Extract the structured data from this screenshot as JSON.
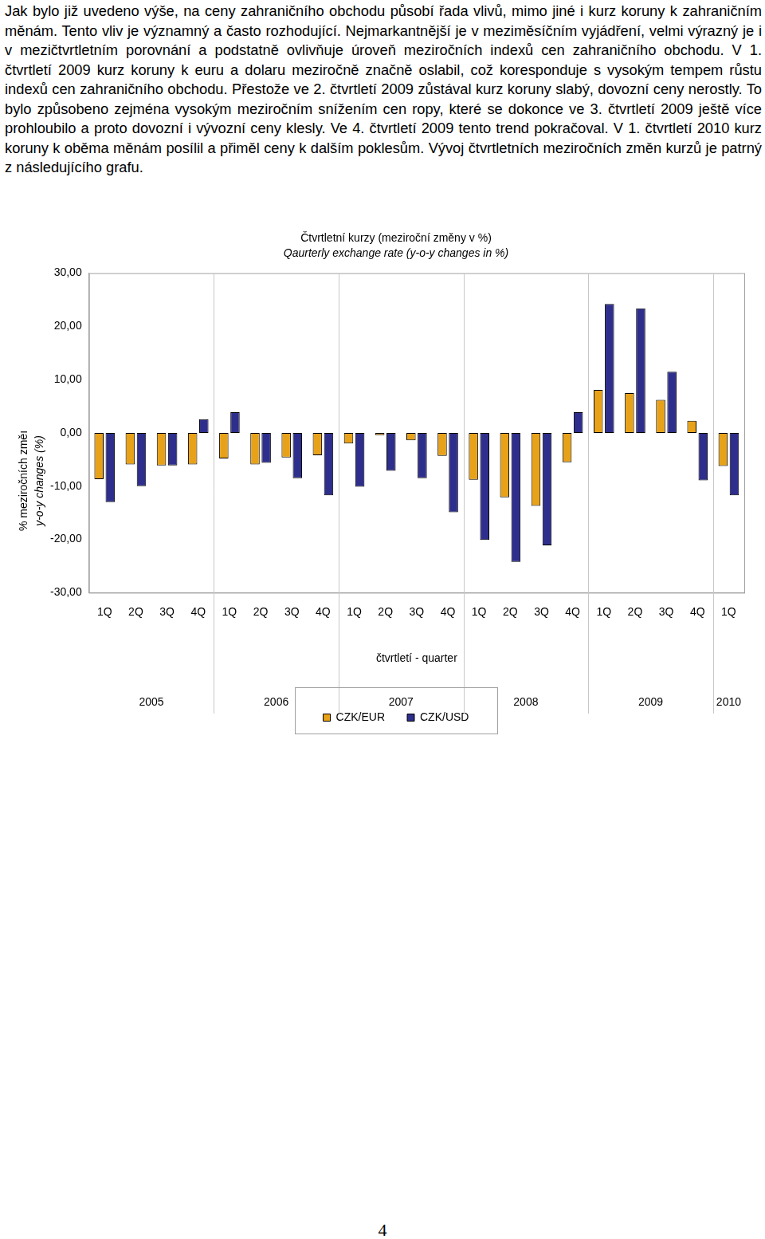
{
  "document": {
    "paragraph": "Jak bylo již uvedeno výše, na ceny zahraničního obchodu působí řada vlivů, mimo jiné i kurz koruny k zahraničním měnám. Tento vliv je významný a často rozhodující. Nejmarkantnější je v meziměsíčním vyjádření, velmi výrazný je i v mezičtvrtletním porovnání a podstatně ovlivňuje úroveň meziročních indexů cen zahraničního obchodu. V 1. čtvrtletí 2009 kurz koruny k euru a dolaru meziročně značně oslabil, což koresponduje s vysokým tempem růstu indexů cen zahraničního obchodu. Přestože ve 2. čtvrtletí 2009 zůstával kurz koruny slabý, dovozní ceny nerostly. To bylo způsobeno zejména vysokým meziročním snížením cen ropy, které se dokonce ve 3. čtvrtletí 2009 ještě více prohloubilo a proto dovozní i vývozní ceny klesly. Ve 4. čtvrtletí 2009 tento trend pokračoval. V 1. čtvrtletí 2010 kurz koruny k oběma měnám posílil a přiměl ceny k dalším poklesům. Vývoj čtvrtletních meziročních změn kurzů je patrný z následujícího grafu.",
    "page_number": "4"
  },
  "chart_data": {
    "type": "bar",
    "title": "Čtvrtletní kurzy (meziroční změny v %)",
    "subtitle": "Qaurterly exchange rate (y-o-y changes in %)",
    "y_label": [
      "% meziročních změı",
      "y-o-y changes (%)"
    ],
    "x_label": "čtvrtletí - quarter",
    "categories": [
      "1Q",
      "2Q",
      "3Q",
      "4Q",
      "1Q",
      "2Q",
      "3Q",
      "4Q",
      "1Q",
      "2Q",
      "3Q",
      "4Q",
      "1Q",
      "2Q",
      "3Q",
      "4Q",
      "1Q",
      "2Q",
      "3Q",
      "4Q",
      "1Q"
    ],
    "category_years": [
      "2005",
      "2005",
      "2005",
      "2005",
      "2006",
      "2006",
      "2006",
      "2006",
      "2007",
      "2007",
      "2007",
      "2007",
      "2008",
      "2008",
      "2008",
      "2008",
      "2009",
      "2009",
      "2009",
      "2009",
      "2010"
    ],
    "series": [
      {
        "name": "CZK/EUR",
        "color": "#e8a21a",
        "values": [
          -8.7,
          -5.9,
          -6.1,
          -5.9,
          -4.8,
          -5.9,
          -4.6,
          -4.2,
          -2.0,
          -0.4,
          -1.4,
          -4.3,
          -8.8,
          -12.1,
          -13.7,
          -5.5,
          8.1,
          7.5,
          6.2,
          2.3,
          -6.2
        ]
      },
      {
        "name": "CZK/USD",
        "color": "#2e2e8c",
        "values": [
          -13.0,
          -10.0,
          -6.1,
          2.6,
          3.9,
          -5.6,
          -8.5,
          -11.7,
          -10.1,
          -7.1,
          -8.5,
          -14.9,
          -20.1,
          -24.2,
          -21.1,
          3.9,
          24.2,
          23.4,
          11.5,
          -8.9,
          -11.7
        ]
      }
    ],
    "ylim": [
      -30,
      30
    ],
    "yticks": [
      {
        "value": -30,
        "label": "-30,00"
      },
      {
        "value": -20,
        "label": "-20,00"
      },
      {
        "value": -10,
        "label": "-10,00"
      },
      {
        "value": 0,
        "label": "0,00"
      },
      {
        "value": 10,
        "label": "10,00"
      },
      {
        "value": 20,
        "label": "20,00"
      },
      {
        "value": 30,
        "label": "30,00"
      }
    ],
    "grid": false,
    "legend": "bottom"
  }
}
